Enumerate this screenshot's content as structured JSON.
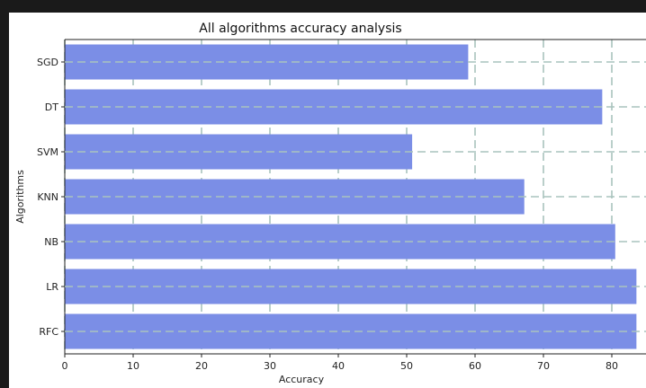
{
  "chart_data": {
    "type": "bar",
    "orientation": "horizontal",
    "title": "All algorithms accuracy analysis",
    "xlabel": "Accuracy",
    "ylabel": "Algorithms",
    "categories": [
      "SGD",
      "DT",
      "SVM",
      "KNN",
      "NB",
      "LR",
      "RFC"
    ],
    "values": [
      59,
      78.6,
      50.8,
      67.2,
      80.5,
      83.6,
      83.6
    ],
    "xlim": [
      0,
      85
    ],
    "xticks": [
      0,
      10,
      20,
      30,
      40,
      50,
      60,
      70,
      80
    ],
    "grid": true,
    "bar_color": "#7b8ee6",
    "grid_color": "#a9c3bd"
  }
}
